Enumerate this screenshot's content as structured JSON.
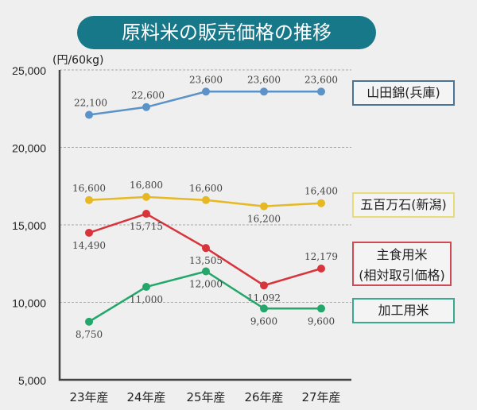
{
  "chart_data": {
    "type": "line",
    "title": "原料米の販売価格の推移",
    "ylabel": "(円/60kg)",
    "xlabel": "",
    "categories": [
      "23年産",
      "24年産",
      "25年産",
      "26年産",
      "27年産"
    ],
    "ylim": [
      5000,
      25000
    ],
    "yticks": [
      5000,
      10000,
      15000,
      20000,
      25000
    ],
    "ytick_labels": [
      "5,000",
      "10,000",
      "15,000",
      "20,000",
      "25,000"
    ],
    "grid": "horizontal dashed",
    "legend_placement": "right",
    "series": [
      {
        "name": "山田錦(兵庫)",
        "color": "#5b93c9",
        "values": [
          22100,
          22600,
          23600,
          23600,
          23600
        ],
        "labels": [
          "22,100",
          "22,600",
          "23,600",
          "23,600",
          "23,600"
        ]
      },
      {
        "name": "五百万石(新潟)",
        "color": "#e6b923",
        "values": [
          16600,
          16800,
          16600,
          16200,
          16400
        ],
        "labels": [
          "16,600",
          "16,800",
          "16,600",
          "16,200",
          "16,400"
        ]
      },
      {
        "name": "主食用米\n(相対取引価格)",
        "color": "#d8343c",
        "values": [
          14490,
          15715,
          13505,
          11092,
          12179
        ],
        "labels": [
          "14,490",
          "15,715",
          "13,505",
          "11,092",
          "12,179"
        ]
      },
      {
        "name": "加工用米",
        "color": "#23a76a",
        "values": [
          8750,
          11000,
          12000,
          9600,
          9600
        ],
        "labels": [
          "8,750",
          "11,000",
          "12,000",
          "9,600",
          "9,600"
        ]
      }
    ]
  }
}
